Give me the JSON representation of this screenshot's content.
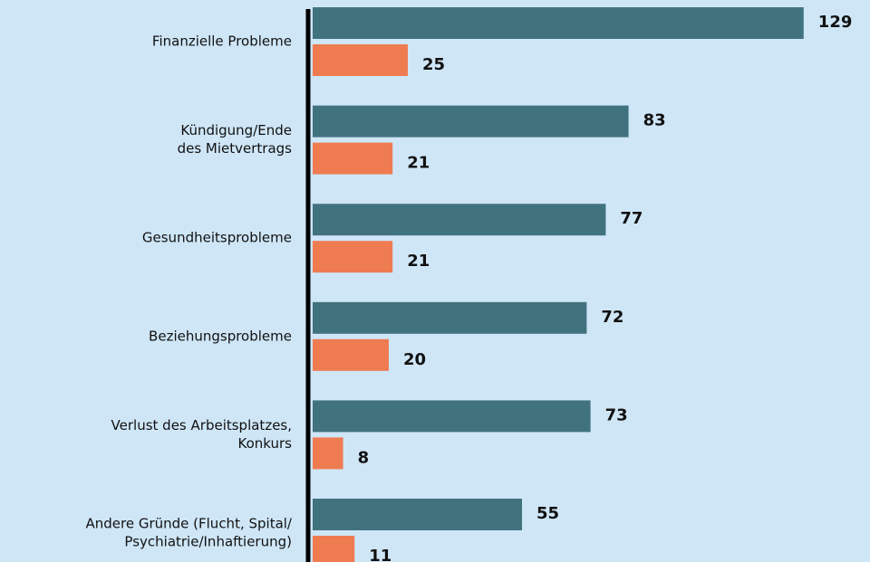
{
  "chart_data": {
    "type": "bar",
    "orientation": "horizontal",
    "categories": [
      [
        "Finanzielle Probleme"
      ],
      [
        "Kündigung/Ende",
        "des Mietvertrags"
      ],
      [
        "Gesundheitsprobleme"
      ],
      [
        "Beziehungsprobleme"
      ],
      [
        "Verlust des Arbeitsplatzes,",
        "Konkurs"
      ],
      [
        "Andere Gründe (Flucht, Spital/",
        "Psychiatrie/Inhaftierung)"
      ]
    ],
    "series": [
      {
        "color": "#41737f",
        "values": [
          129,
          83,
          77,
          72,
          73,
          55
        ]
      },
      {
        "color": "#ef7b51",
        "values": [
          25,
          21,
          21,
          20,
          8,
          11
        ]
      }
    ],
    "xlim": [
      0,
      130
    ]
  }
}
